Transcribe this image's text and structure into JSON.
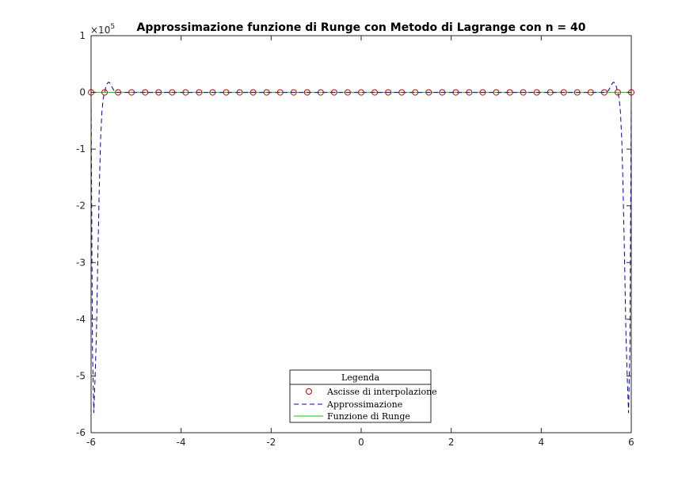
{
  "chart_data": {
    "type": "line",
    "title": "Approssimazione funzione di Runge con Metodo di Lagrange con n = 40",
    "xlabel": "",
    "ylabel": "",
    "xlim": [
      -6,
      6
    ],
    "ylim": [
      -600000,
      100000
    ],
    "x_ticks": [
      -6,
      -4,
      -2,
      0,
      2,
      4,
      6
    ],
    "x_tick_labels": [
      "-6",
      "-4",
      "-2",
      "0",
      "2",
      "4",
      "6"
    ],
    "y_ticks": [
      100000,
      0,
      -100000,
      -200000,
      -300000,
      -400000,
      -500000,
      -600000
    ],
    "y_tick_labels": [
      "1",
      "0",
      "-1",
      "-2",
      "-3",
      "-4",
      "-5",
      "-6"
    ],
    "y_exponent_label": "×10",
    "y_exponent_power": "5",
    "grid": false,
    "legend": {
      "title": "Legenda",
      "position": "bottom-center",
      "entries": [
        "Ascisse di interpolazione",
        "Approssimazione",
        "Funzione di Runge"
      ]
    },
    "series": [
      {
        "name": "Ascisse di interpolazione",
        "style": "markers",
        "marker": "circle",
        "color": "#d00000",
        "x": [
          -6.0,
          -5.7,
          -5.4,
          -5.1,
          -4.8,
          -4.5,
          -4.2,
          -3.9,
          -3.6,
          -3.3,
          -3.0,
          -2.7,
          -2.4,
          -2.1,
          -1.8,
          -1.5,
          -1.2,
          -0.9,
          -0.6,
          -0.3,
          0.0,
          0.3,
          0.6,
          0.9,
          1.2,
          1.5,
          1.8,
          2.1,
          2.4,
          2.7,
          3.0,
          3.3,
          3.6,
          3.9,
          4.2,
          4.5,
          4.8,
          5.1,
          5.4,
          5.7,
          6.0
        ],
        "y": [
          0.027,
          0.0299,
          0.0332,
          0.037,
          0.0416,
          0.0471,
          0.0536,
          0.0617,
          0.0716,
          0.0841,
          0.1,
          0.1207,
          0.1479,
          0.1848,
          0.2358,
          0.3077,
          0.4098,
          0.5525,
          0.7353,
          0.9174,
          1.0,
          0.9174,
          0.7353,
          0.5525,
          0.4098,
          0.3077,
          0.2358,
          0.1848,
          0.1479,
          0.1207,
          0.1,
          0.0841,
          0.0716,
          0.0617,
          0.0536,
          0.0471,
          0.0416,
          0.037,
          0.0332,
          0.0299,
          0.027
        ]
      },
      {
        "name": "Approssimazione",
        "style": "dashed",
        "color": "#0000cc",
        "x": [
          -6.0,
          -5.97,
          -5.94,
          -5.91,
          -5.88,
          -5.85,
          -5.82,
          -5.79,
          -5.76,
          -5.73,
          -5.7,
          -5.67,
          -5.64,
          -5.61,
          -5.58,
          -5.55,
          -5.52,
          -5.49,
          -5.46,
          -5.43,
          -5.4,
          -5.3,
          -5.0,
          5.0,
          5.3,
          5.4,
          5.43,
          5.46,
          5.49,
          5.52,
          5.55,
          5.58,
          5.61,
          5.64,
          5.67,
          5.7,
          5.73,
          5.76,
          5.79,
          5.82,
          5.85,
          5.88,
          5.91,
          5.94,
          5.97,
          6.0
        ],
        "y": [
          0,
          -450000,
          -565000,
          -500000,
          -420000,
          -290000,
          -175000,
          -85000,
          -35000,
          -10000,
          0,
          10000,
          16000,
          18000,
          16000,
          12000,
          7000,
          3000,
          800,
          100,
          0,
          0,
          0,
          0,
          0,
          0,
          100,
          800,
          3000,
          7000,
          12000,
          16000,
          18000,
          16000,
          10000,
          0,
          -10000,
          -35000,
          -85000,
          -175000,
          -290000,
          -420000,
          -500000,
          -565000,
          -450000,
          0
        ]
      },
      {
        "name": "Funzione di Runge",
        "style": "solid",
        "color": "#00cc00",
        "x": [
          -6.0,
          -5.0,
          -4.0,
          -3.0,
          -2.5,
          -2.0,
          -1.5,
          -1.0,
          -0.75,
          -0.5,
          -0.25,
          0.0,
          0.25,
          0.5,
          0.75,
          1.0,
          1.5,
          2.0,
          2.5,
          3.0,
          4.0,
          5.0,
          6.0
        ],
        "y": [
          0.027,
          0.038,
          0.059,
          0.1,
          0.138,
          0.2,
          0.308,
          0.5,
          0.64,
          0.8,
          0.941,
          1.0,
          0.941,
          0.8,
          0.64,
          0.5,
          0.308,
          0.2,
          0.138,
          0.1,
          0.059,
          0.038,
          0.027
        ]
      }
    ]
  }
}
